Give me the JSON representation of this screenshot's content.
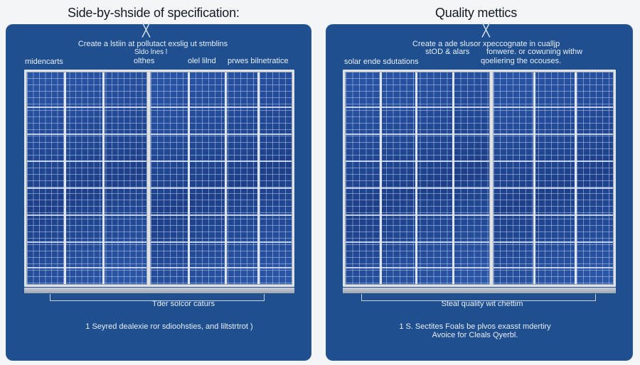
{
  "left": {
    "heading": "Side-by-shside of specification:",
    "instruction": "Create a lstiin at pollutact exslig ut stmblins",
    "sub_instruction": "Sldo lnes l",
    "labels": [
      "midencarts",
      "olthes",
      "olel lilnd",
      "prwes bilnetratice"
    ],
    "caption": "Tder solcor caturs",
    "footnote": "1  Seyred dealexie ror sdioohsties, and liltstrtrot )"
  },
  "right": {
    "heading": "Quality mettics",
    "instruction": "Create a ade slusor xpeccognate in cualljp",
    "instruction_line2": "stOD & alars",
    "instruction_right2": "fonwere. or cowuning withw",
    "instruction_right3": "qoeliering the ocouses.",
    "labels": [
      "solar ende sdutations"
    ],
    "caption": "Steal quality wit chettim",
    "footnote_line1": "1 S. Sectites Foals be plvos exasst mdertiry",
    "footnote_line2": "Avoice for Cleals Qyerbl."
  },
  "icons": {
    "left_marker": "close-x-icon",
    "right_marker": "close-x-icon"
  },
  "colors": {
    "panel_bg": "#1f4f8e",
    "page_bg": "#f4f5f7",
    "panel_cell": "#20448f"
  }
}
